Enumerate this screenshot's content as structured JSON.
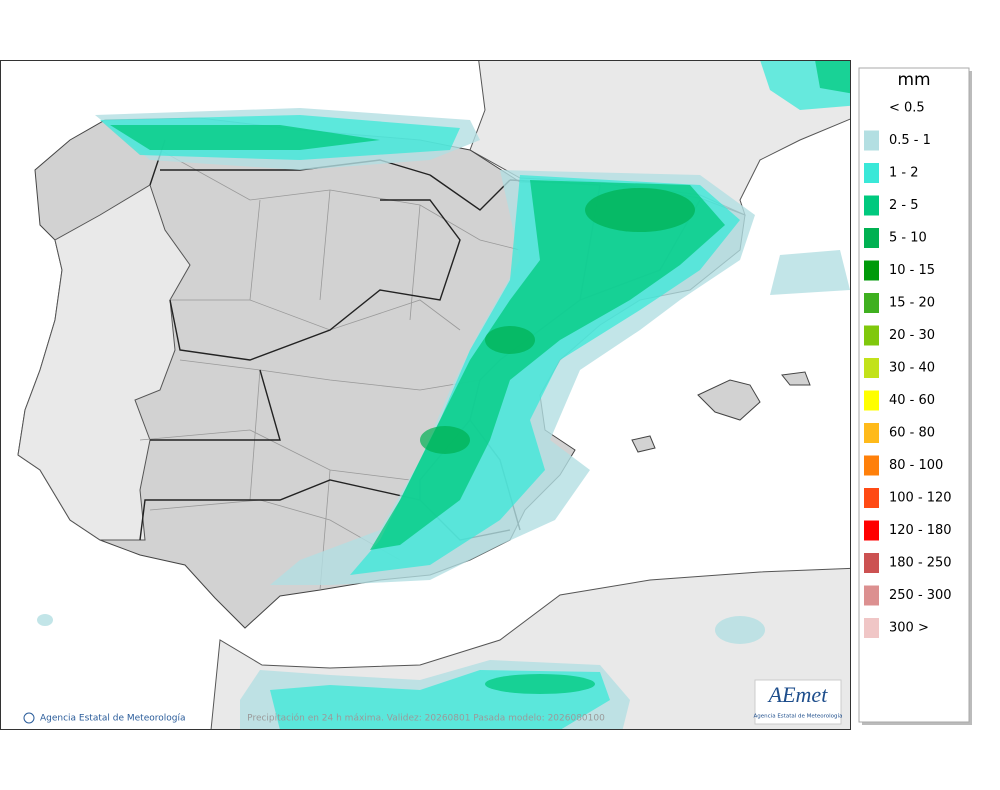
{
  "legend": {
    "title": "mm",
    "items": [
      {
        "label": "< 0.5"
      },
      {
        "label": "0.5 - 1",
        "color": "#b3dfe2"
      },
      {
        "label": "1 - 2",
        "color": "#3ae8d8"
      },
      {
        "label": "2 - 5",
        "color": "#00c97e"
      },
      {
        "label": "5 - 10",
        "color": "#00b152"
      },
      {
        "label": "10 - 15",
        "color": "#009a0a"
      },
      {
        "label": "15 - 20",
        "color": "#3fb020"
      },
      {
        "label": "20 - 30",
        "color": "#80c80c"
      },
      {
        "label": "30 - 40",
        "color": "#c2e21a"
      },
      {
        "label": "40 - 60",
        "color": "#ffff00"
      },
      {
        "label": "60 - 80",
        "color": "#ffba1a"
      },
      {
        "label": "80 - 100",
        "color": "#ff800a"
      },
      {
        "label": "100 - 120",
        "color": "#ff4a14"
      },
      {
        "label": "120 - 180",
        "color": "#ff0000"
      },
      {
        "label": "180 - 250",
        "color": "#cc5252"
      },
      {
        "label": "250 - 300",
        "color": "#dc9090"
      },
      {
        "label": "300 >",
        "color": "#f0c6c6"
      }
    ]
  },
  "footer": {
    "credit": "Agencia Estatal de Meteorología",
    "caption": "Precipitación en 24 h máxima. Validez: 20260801 Pasada modelo: 2026080100"
  },
  "logo": {
    "name": "AEmet",
    "subtitle": "Agencia Estatal de Meteorología"
  }
}
